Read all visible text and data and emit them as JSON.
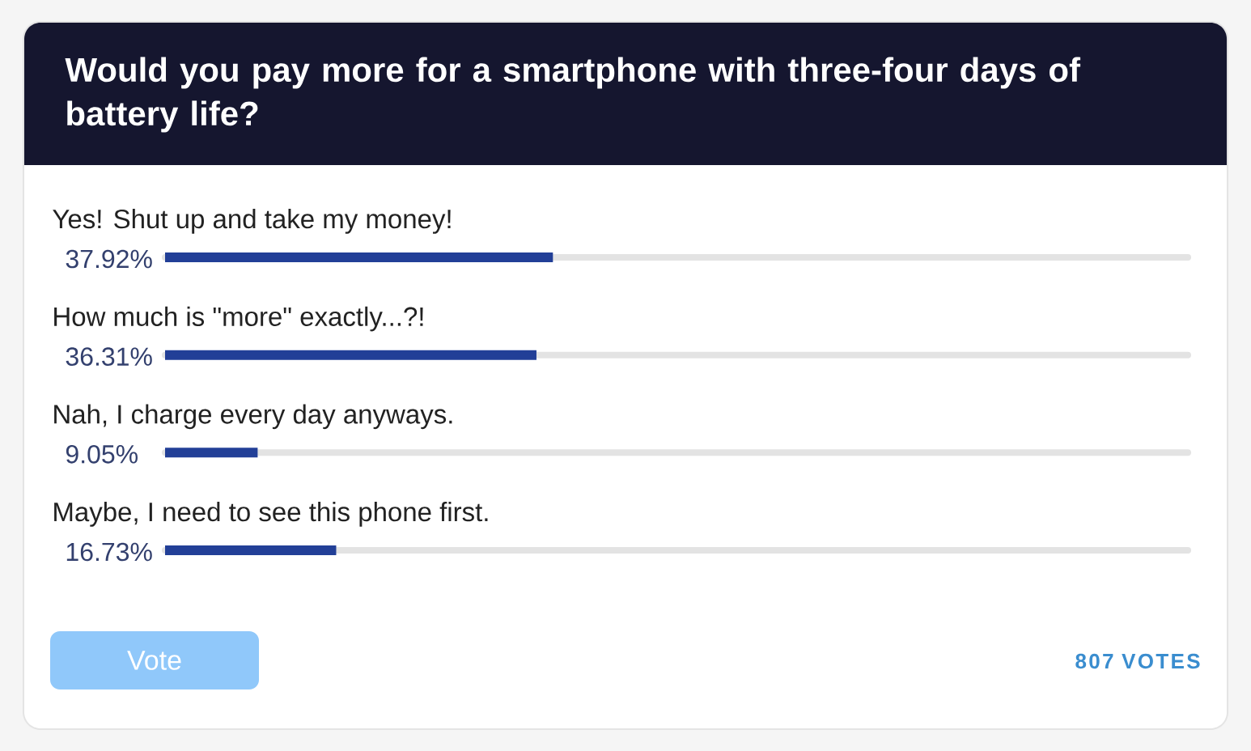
{
  "chart_data": {
    "type": "bar",
    "orientation": "horizontal",
    "title": "Would you pay more for a smartphone with three-four days of battery life?",
    "categories": [
      "Yes! Shut up and take my money!",
      "How much is \"more\" exactly...?!",
      "Nah, I charge every day anyways.",
      "Maybe, I need to see this phone first."
    ],
    "values": [
      37.92,
      36.31,
      9.05,
      16.73
    ],
    "value_labels": [
      "37.92%",
      "36.31%",
      "9.05%",
      "16.73%"
    ],
    "color": "#223f97",
    "xlim": [
      0,
      100
    ],
    "annotations": [
      "Vote",
      "807 VOTES"
    ]
  }
}
